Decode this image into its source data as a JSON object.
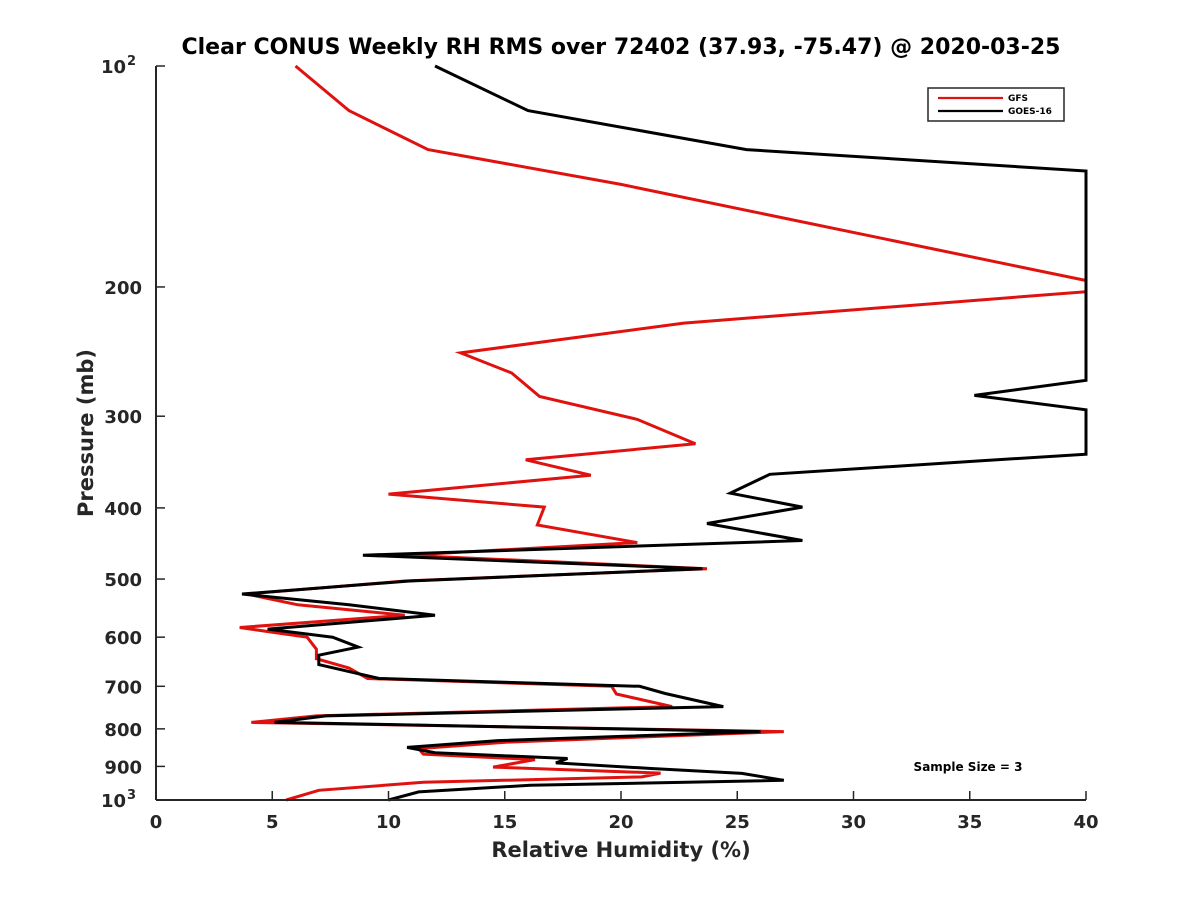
{
  "chart_data": {
    "type": "line",
    "title": "Clear CONUS Weekly RH RMS over 72402 (37.93, -75.47) @ 2020-03-25",
    "xlabel": "Relative Humidity (%)",
    "ylabel": "Pressure (mb)",
    "xlim": [
      0,
      40
    ],
    "ylim": [
      100,
      1000
    ],
    "y_scale": "log",
    "y_reversed": true,
    "x_ticks": [
      0,
      5,
      10,
      15,
      20,
      25,
      30,
      35,
      40
    ],
    "x_tick_labels": [
      "0",
      "5",
      "10",
      "15",
      "20",
      "25",
      "30",
      "35",
      "40"
    ],
    "y_ticks": [
      100,
      200,
      300,
      400,
      500,
      600,
      700,
      800,
      900,
      1000
    ],
    "y_tick_labels": [
      {
        "base": "10",
        "exp": "2"
      },
      {
        "base": "200",
        "exp": ""
      },
      {
        "base": "300",
        "exp": ""
      },
      {
        "base": "400",
        "exp": ""
      },
      {
        "base": "500",
        "exp": ""
      },
      {
        "base": "600",
        "exp": ""
      },
      {
        "base": "700",
        "exp": ""
      },
      {
        "base": "800",
        "exp": ""
      },
      {
        "base": "900",
        "exp": ""
      },
      {
        "base": "10",
        "exp": "3"
      }
    ],
    "legend_position": "top-right",
    "annotation": "Sample Size = 3",
    "series": [
      {
        "name": "GFS",
        "color": "#e0120f",
        "points": [
          [
            6.0,
            100
          ],
          [
            8.3,
            115
          ],
          [
            11.7,
            130
          ],
          [
            20.0,
            145
          ],
          [
            40.0,
            196
          ],
          [
            40.0,
            203
          ],
          [
            22.7,
            224
          ],
          [
            13.1,
            246
          ],
          [
            15.3,
            262
          ],
          [
            16.5,
            282
          ],
          [
            20.7,
            303
          ],
          [
            23.2,
            327
          ],
          [
            15.9,
            344
          ],
          [
            18.7,
            361
          ],
          [
            10.0,
            383
          ],
          [
            16.7,
            399
          ],
          [
            16.4,
            422
          ],
          [
            20.7,
            446
          ],
          [
            10.7,
            464
          ],
          [
            23.7,
            484
          ],
          [
            10.7,
            503
          ],
          [
            3.9,
            524
          ],
          [
            6.1,
            542
          ],
          [
            10.7,
            560
          ],
          [
            3.6,
            582
          ],
          [
            6.5,
            600
          ],
          [
            6.9,
            623
          ],
          [
            6.9,
            642
          ],
          [
            8.3,
            661
          ],
          [
            9.1,
            683
          ],
          [
            19.6,
            700
          ],
          [
            19.8,
            717
          ],
          [
            22.2,
            746
          ],
          [
            6.9,
            768
          ],
          [
            4.1,
            784
          ],
          [
            27.0,
            807
          ],
          [
            15.1,
            834
          ],
          [
            11.3,
            851
          ],
          [
            11.5,
            866
          ],
          [
            16.3,
            881
          ],
          [
            14.5,
            902
          ],
          [
            21.7,
            919
          ],
          [
            20.9,
            930
          ],
          [
            11.5,
            946
          ],
          [
            7.0,
            970
          ],
          [
            5.6,
            1000
          ]
        ]
      },
      {
        "name": "GOES-16",
        "color": "#000000",
        "points": [
          [
            12.0,
            100
          ],
          [
            16.0,
            115
          ],
          [
            25.4,
            130
          ],
          [
            40.0,
            139
          ],
          [
            40.0,
            268
          ],
          [
            35.2,
            281
          ],
          [
            40.0,
            294
          ],
          [
            40.0,
            338
          ],
          [
            35.5,
            345
          ],
          [
            26.4,
            360
          ],
          [
            24.7,
            382
          ],
          [
            27.8,
            399
          ],
          [
            23.7,
            420
          ],
          [
            27.8,
            443
          ],
          [
            8.9,
            464
          ],
          [
            23.5,
            484
          ],
          [
            10.9,
            503
          ],
          [
            3.7,
            524
          ],
          [
            8.3,
            542
          ],
          [
            12.0,
            560
          ],
          [
            4.8,
            585
          ],
          [
            7.6,
            600
          ],
          [
            8.7,
            619
          ],
          [
            7.0,
            635
          ],
          [
            7.0,
            654
          ],
          [
            9.6,
            683
          ],
          [
            20.8,
            700
          ],
          [
            21.9,
            716
          ],
          [
            24.4,
            746
          ],
          [
            7.3,
            768
          ],
          [
            5.1,
            784
          ],
          [
            26.0,
            807
          ],
          [
            14.7,
            830
          ],
          [
            10.8,
            848
          ],
          [
            12.0,
            862
          ],
          [
            17.7,
            878
          ],
          [
            17.2,
            890
          ],
          [
            21.3,
            906
          ],
          [
            25.2,
            920
          ],
          [
            27.0,
            940
          ],
          [
            16.1,
            955
          ],
          [
            11.3,
            975
          ],
          [
            10.0,
            1000
          ]
        ]
      }
    ]
  }
}
